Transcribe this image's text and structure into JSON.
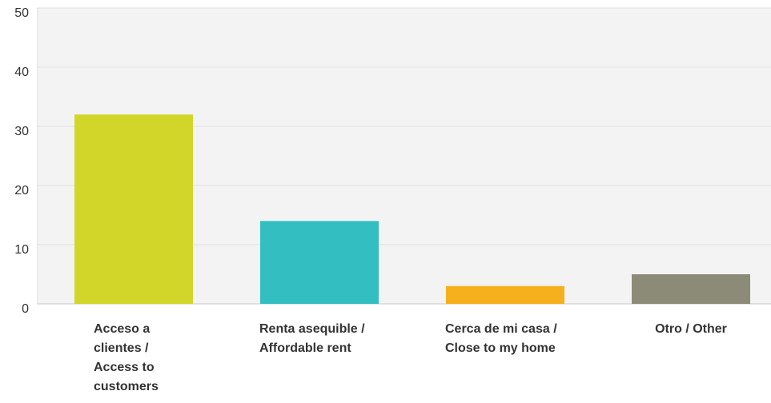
{
  "chart_data": {
    "type": "bar",
    "categories": [
      "Acceso a clientes / Access to customers",
      "Renta asequible / Affordable rent",
      "Cerca de mi casa / Close to my home",
      "Otro / Other"
    ],
    "values": [
      32,
      14,
      3,
      5
    ],
    "colors": [
      "#d1d628",
      "#33bfc1",
      "#f6b01d",
      "#8b8b78"
    ],
    "ylim": [
      0,
      50
    ],
    "yticks": [
      0,
      10,
      20,
      30,
      40,
      50
    ],
    "grid": true
  }
}
